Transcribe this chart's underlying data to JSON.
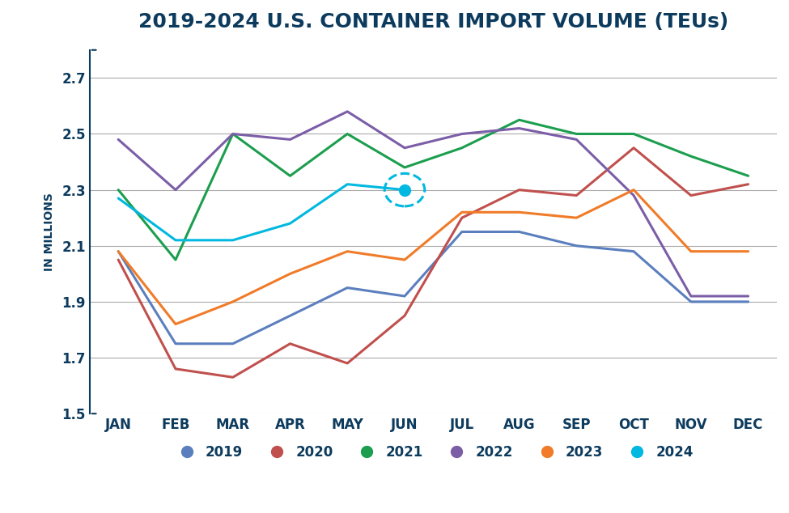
{
  "title": "2019-2024 U.S. CONTAINER IMPORT VOLUME (TEUs)",
  "ylabel": "IN MILLIONS",
  "months": [
    "JAN",
    "FEB",
    "MAR",
    "APR",
    "MAY",
    "JUN",
    "JUL",
    "AUG",
    "SEP",
    "OCT",
    "NOV",
    "DEC"
  ],
  "ylim": [
    1.5,
    2.8
  ],
  "yticks": [
    1.5,
    1.7,
    1.9,
    2.1,
    2.3,
    2.5,
    2.7
  ],
  "series": {
    "2019": {
      "values": [
        2.08,
        1.75,
        1.75,
        1.85,
        1.95,
        1.92,
        2.15,
        2.15,
        2.1,
        2.08,
        1.9,
        1.9
      ],
      "color": "#5B7FBE",
      "zorder": 3
    },
    "2020": {
      "values": [
        2.05,
        1.66,
        1.63,
        1.75,
        1.68,
        1.85,
        2.2,
        2.3,
        2.28,
        2.45,
        2.28,
        2.32
      ],
      "color": "#C0504D",
      "zorder": 3
    },
    "2021": {
      "values": [
        2.3,
        2.05,
        2.5,
        2.35,
        2.5,
        2.38,
        2.45,
        2.55,
        2.5,
        2.5,
        2.42,
        2.35
      ],
      "color": "#1C9E4E",
      "zorder": 3
    },
    "2022": {
      "values": [
        2.48,
        2.3,
        2.5,
        2.48,
        2.58,
        2.45,
        2.5,
        2.52,
        2.48,
        2.28,
        1.92,
        1.92
      ],
      "color": "#7B5EA7",
      "zorder": 3
    },
    "2023": {
      "values": [
        2.08,
        1.82,
        1.9,
        2.0,
        2.08,
        2.05,
        2.22,
        2.22,
        2.2,
        2.3,
        2.08,
        2.08
      ],
      "color": "#F07B28",
      "zorder": 3
    },
    "2024": {
      "values": [
        2.27,
        2.12,
        2.12,
        2.18,
        2.32,
        2.3,
        null,
        null,
        null,
        null,
        null,
        null
      ],
      "color": "#00B8E0",
      "zorder": 4
    }
  },
  "highlight_point": {
    "year": "2024",
    "month_index": 5,
    "value": 2.3
  },
  "title_color": "#0D3B5E",
  "axis_color": "#0D3B5E",
  "tick_label_color": "#0D3B5E",
  "grid_color": "#AAAAAA",
  "background_color": "#FFFFFF",
  "legend_label_color": "#0D3B5E",
  "linewidth": 2.2,
  "title_fontsize": 18,
  "tick_fontsize": 12,
  "legend_fontsize": 12
}
